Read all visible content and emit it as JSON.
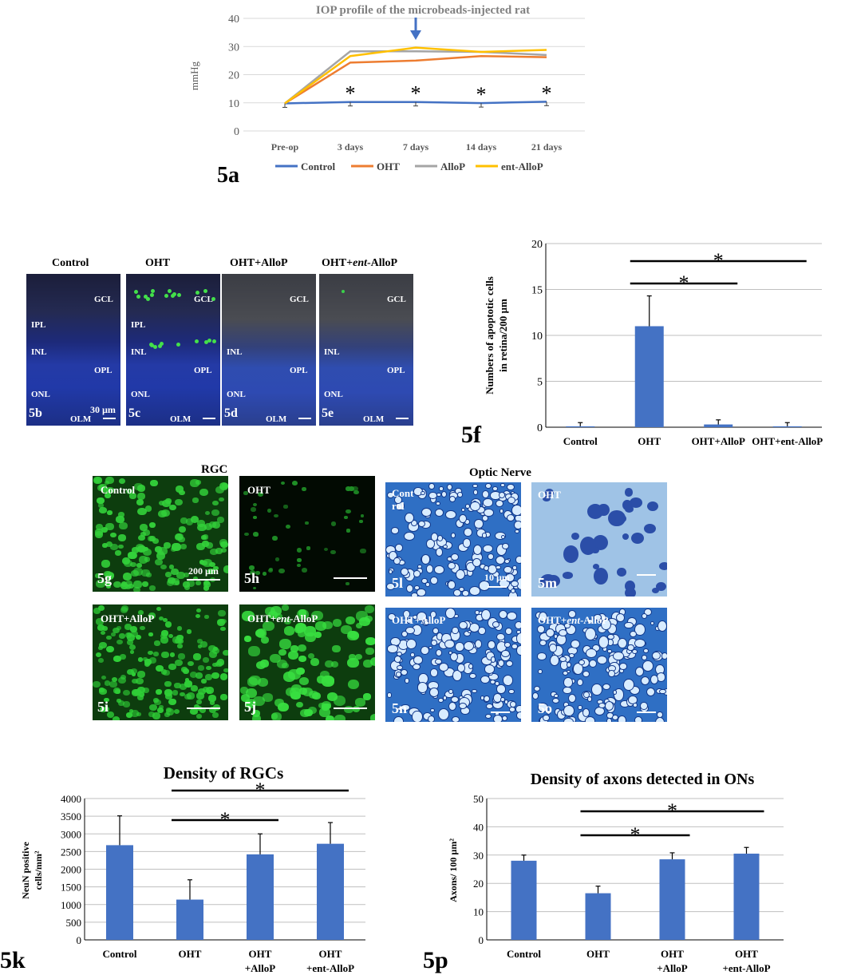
{
  "chart_data": [
    {
      "id": "5a",
      "type": "line",
      "title": "IOP profile of the microbeads-injected rat",
      "ylabel": "mmHg",
      "xlabel": "",
      "ylim": [
        0,
        40
      ],
      "yticks": [
        0,
        10,
        20,
        30,
        40
      ],
      "categories": [
        "Pre-op",
        "3 days",
        "7 days",
        "14 days",
        "21 days"
      ],
      "series": [
        {
          "name": "Control",
          "color": "#4472c4",
          "values": [
            9.8,
            10.3,
            10.3,
            9.9,
            10.4
          ]
        },
        {
          "name": "OHT",
          "color": "#ed7d31",
          "values": [
            9.8,
            24.3,
            25,
            26.6,
            26.2
          ]
        },
        {
          "name": "AlloP",
          "color": "#a5a5a5",
          "values": [
            9.8,
            28.3,
            28.3,
            28.1,
            27
          ]
        },
        {
          "name": "ent-AlloP",
          "color": "#ffc000",
          "values": [
            9.8,
            26.6,
            29.6,
            28.1,
            28.8
          ]
        }
      ],
      "annotations": [
        "*",
        "*",
        "*",
        "*"
      ],
      "arrow_at": "7 days",
      "legend": "bottom",
      "grid": true
    },
    {
      "id": "5f",
      "type": "bar",
      "title": "",
      "ylabel_line1": "Numbers of apoptotic cells",
      "ylabel_line2": "in retina/200 µm",
      "ylim": [
        0,
        20
      ],
      "yticks": [
        0,
        5,
        10,
        15,
        20
      ],
      "categories": [
        "Control",
        "OHT",
        "OHT+AlloP",
        "OHT+ent-AlloP"
      ],
      "values": [
        0.1,
        11,
        0.3,
        0.1
      ],
      "errors": [
        0.4,
        3.3,
        0.5,
        0.4
      ],
      "significance": [
        {
          "from": 1,
          "to": 2,
          "label": "*"
        },
        {
          "from": 1,
          "to": 3,
          "label": "*"
        }
      ],
      "color": "#4472c4",
      "grid": true
    },
    {
      "id": "5k",
      "type": "bar",
      "title": "Density of RGCs",
      "ylabel_line1": "NeuN positive",
      "ylabel_line2": "cells/mm²",
      "ylim": [
        0,
        4000
      ],
      "yticks": [
        0,
        500,
        1000,
        1500,
        2000,
        2500,
        3000,
        3500,
        4000
      ],
      "categories": [
        [
          "Control",
          ""
        ],
        [
          "OHT",
          ""
        ],
        [
          "OHT",
          "+AlloP"
        ],
        [
          "OHT",
          "+ent-AlloP"
        ]
      ],
      "values": [
        2680,
        1140,
        2420,
        2720
      ],
      "errors": [
        830,
        560,
        580,
        600
      ],
      "significance": [
        {
          "from": 1,
          "to": 2,
          "label": "*"
        },
        {
          "from": 1,
          "to": 3,
          "label": "*"
        }
      ],
      "color": "#4472c4",
      "grid": true
    },
    {
      "id": "5p",
      "type": "bar",
      "title": "Density of axons detected in ONs",
      "ylabel_line1": "Axons/ 100 µm²",
      "ylabel_line2": "",
      "ylim": [
        0,
        50
      ],
      "yticks": [
        0,
        10,
        20,
        30,
        40,
        50
      ],
      "categories": [
        [
          "Control",
          ""
        ],
        [
          "OHT",
          ""
        ],
        [
          "OHT",
          "+AlloP"
        ],
        [
          "OHT",
          "+ent-AlloP"
        ]
      ],
      "values": [
        28,
        16.5,
        28.5,
        30.5
      ],
      "errors": [
        2,
        2.5,
        2.3,
        2.2
      ],
      "significance": [
        {
          "from": 1,
          "to": 2,
          "label": "*"
        },
        {
          "from": 1,
          "to": 3,
          "label": "*"
        }
      ],
      "color": "#4472c4",
      "grid": true
    }
  ],
  "panel_labels": {
    "a": "5a",
    "f": "5f",
    "k": "5k",
    "p": "5p"
  },
  "retina": {
    "headers": [
      "Control",
      "OHT",
      "OHT+AlloP",
      "OHT+"
    ],
    "header_ent": "ent",
    "header_tail": "-AlloP",
    "panels": [
      {
        "label": "5b",
        "layers": [
          "GCL",
          "IPL",
          "INL",
          "OPL",
          "ONL",
          "OLM"
        ],
        "scale": "30 µm"
      },
      {
        "label": "5c",
        "layers": [
          "GCL",
          "IPL",
          "INL",
          "OPL",
          "ONL",
          "OLM"
        ]
      },
      {
        "label": "5d",
        "layers": [
          "GCL",
          "INL",
          "OPL",
          "ONL",
          "OLM"
        ]
      },
      {
        "label": "5e",
        "layers": [
          "GCL",
          "INL",
          "OPL",
          "ONL",
          "OLM"
        ]
      }
    ]
  },
  "rgc": {
    "heading": "RGC",
    "panels": [
      {
        "label": "5g",
        "name": "Control",
        "scale": "200 µm"
      },
      {
        "label": "5h",
        "name": "OHT"
      },
      {
        "label": "5i",
        "name": "OHT+AlloP"
      },
      {
        "label": "5j",
        "name_pre": "OHT+",
        "name_ent": "ent",
        "name_post": "-AlloP"
      }
    ]
  },
  "optic": {
    "heading": "Optic Nerve",
    "panels": [
      {
        "label": "5l",
        "name_line1": "Cont",
        "name_line2": "rol",
        "scale": "10 µm"
      },
      {
        "label": "5m",
        "name": "OHT"
      },
      {
        "label": "5n",
        "name": "OHT+AlloP"
      },
      {
        "label": "5o",
        "name_pre": "OHT+",
        "name_ent": "ent",
        "name_post": "-AlloP"
      }
    ]
  }
}
